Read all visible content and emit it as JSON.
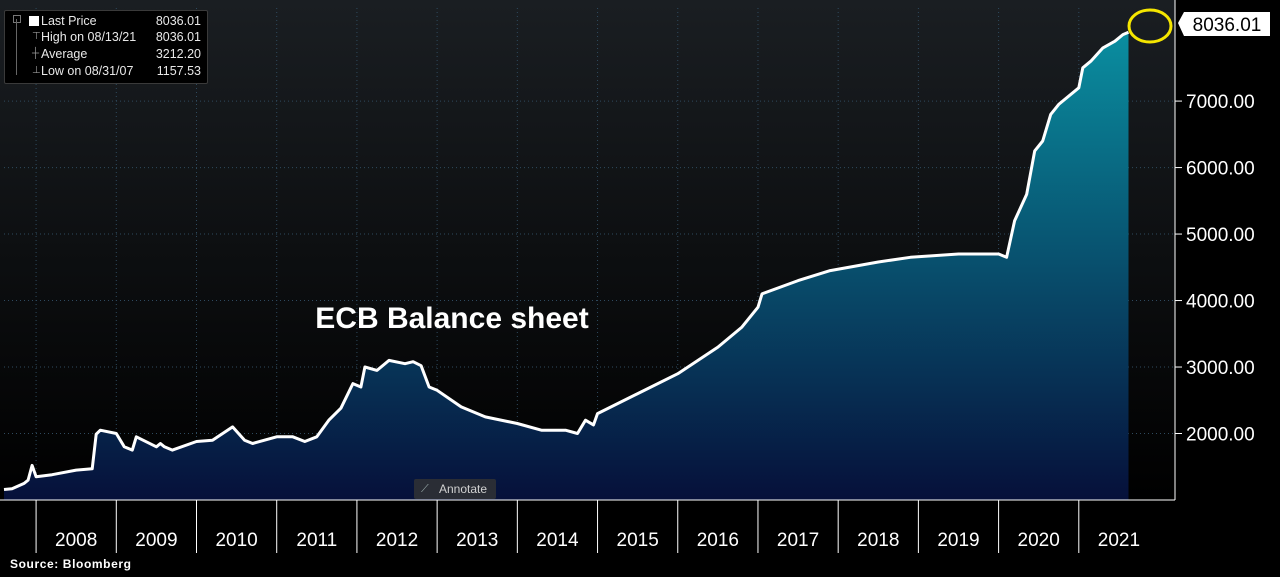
{
  "legend": {
    "items": [
      {
        "name": "Last Price",
        "value": "8036.01"
      },
      {
        "name": "High on 08/13/21",
        "value": "8036.01"
      },
      {
        "name": "Average",
        "value": "3212.20"
      },
      {
        "name": "Low on 08/31/07",
        "value": "1157.53"
      }
    ]
  },
  "annotate_label": "Annotate",
  "source": "Source:  Bloomberg",
  "last_price_tag": "8036.01",
  "colors": {
    "background": "#000000",
    "line": "#ffffff",
    "fill_top": "#0a8ea0",
    "fill_bottom": "#06103a",
    "highlight_circle": "#f5e600",
    "grid": "#2f4a5e",
    "axis_text": "#ffffff"
  },
  "icons": [
    "legend-square-icon",
    "high-marker-icon",
    "average-marker-icon",
    "low-marker-icon",
    "pen-icon"
  ],
  "chart_data": {
    "type": "area",
    "title": "ECB Balance sheet",
    "xlabel": "",
    "ylabel": "",
    "y_ticks": [
      "2000.00",
      "3000.00",
      "4000.00",
      "5000.00",
      "6000.00",
      "7000.00"
    ],
    "x_tick_labels": [
      "2008",
      "2009",
      "2010",
      "2011",
      "2012",
      "2013",
      "2014",
      "2015",
      "2016",
      "2017",
      "2018",
      "2019",
      "2020",
      "2021"
    ],
    "xlim": [
      2007.6,
      2021.95
    ],
    "ylim": [
      1000,
      8400
    ],
    "grid": true,
    "legend_position": "top-left",
    "series": [
      {
        "name": "Last Price",
        "x": [
          2007.6,
          2007.7,
          2007.85,
          2007.9,
          2007.95,
          2008.0,
          2008.2,
          2008.5,
          2008.7,
          2008.75,
          2008.8,
          2009.0,
          2009.1,
          2009.2,
          2009.25,
          2009.5,
          2009.55,
          2009.6,
          2009.7,
          2010.0,
          2010.2,
          2010.45,
          2010.6,
          2010.7,
          2011.0,
          2011.2,
          2011.35,
          2011.5,
          2011.65,
          2011.8,
          2011.95,
          2012.05,
          2012.1,
          2012.25,
          2012.4,
          2012.6,
          2012.7,
          2012.8,
          2012.9,
          2013.0,
          2013.3,
          2013.6,
          2014.0,
          2014.3,
          2014.6,
          2014.75,
          2014.85,
          2014.95,
          2015.0,
          2015.5,
          2016.0,
          2016.5,
          2016.8,
          2017.0,
          2017.05,
          2017.5,
          2017.9,
          2018.5,
          2018.9,
          2019.5,
          2019.85,
          2020.0,
          2020.1,
          2020.2,
          2020.35,
          2020.45,
          2020.55,
          2020.65,
          2020.75,
          2021.0,
          2021.05,
          2021.15,
          2021.3,
          2021.45,
          2021.55,
          2021.62
        ],
        "values": [
          1158,
          1170,
          1250,
          1300,
          1520,
          1350,
          1380,
          1450,
          1470,
          1990,
          2050,
          2000,
          1800,
          1750,
          1950,
          1800,
          1850,
          1800,
          1750,
          1880,
          1900,
          2100,
          1900,
          1850,
          1950,
          1950,
          1880,
          1950,
          2200,
          2380,
          2750,
          2700,
          3000,
          2950,
          3100,
          3050,
          3080,
          3020,
          2700,
          2650,
          2400,
          2250,
          2150,
          2050,
          2050,
          2000,
          2200,
          2130,
          2300,
          2600,
          2900,
          3300,
          3600,
          3900,
          4100,
          4300,
          4450,
          4580,
          4650,
          4700,
          4700,
          4700,
          4650,
          5200,
          5600,
          6250,
          6400,
          6800,
          6950,
          7200,
          7500,
          7600,
          7800,
          7900,
          8000,
          8036
        ]
      }
    ]
  }
}
